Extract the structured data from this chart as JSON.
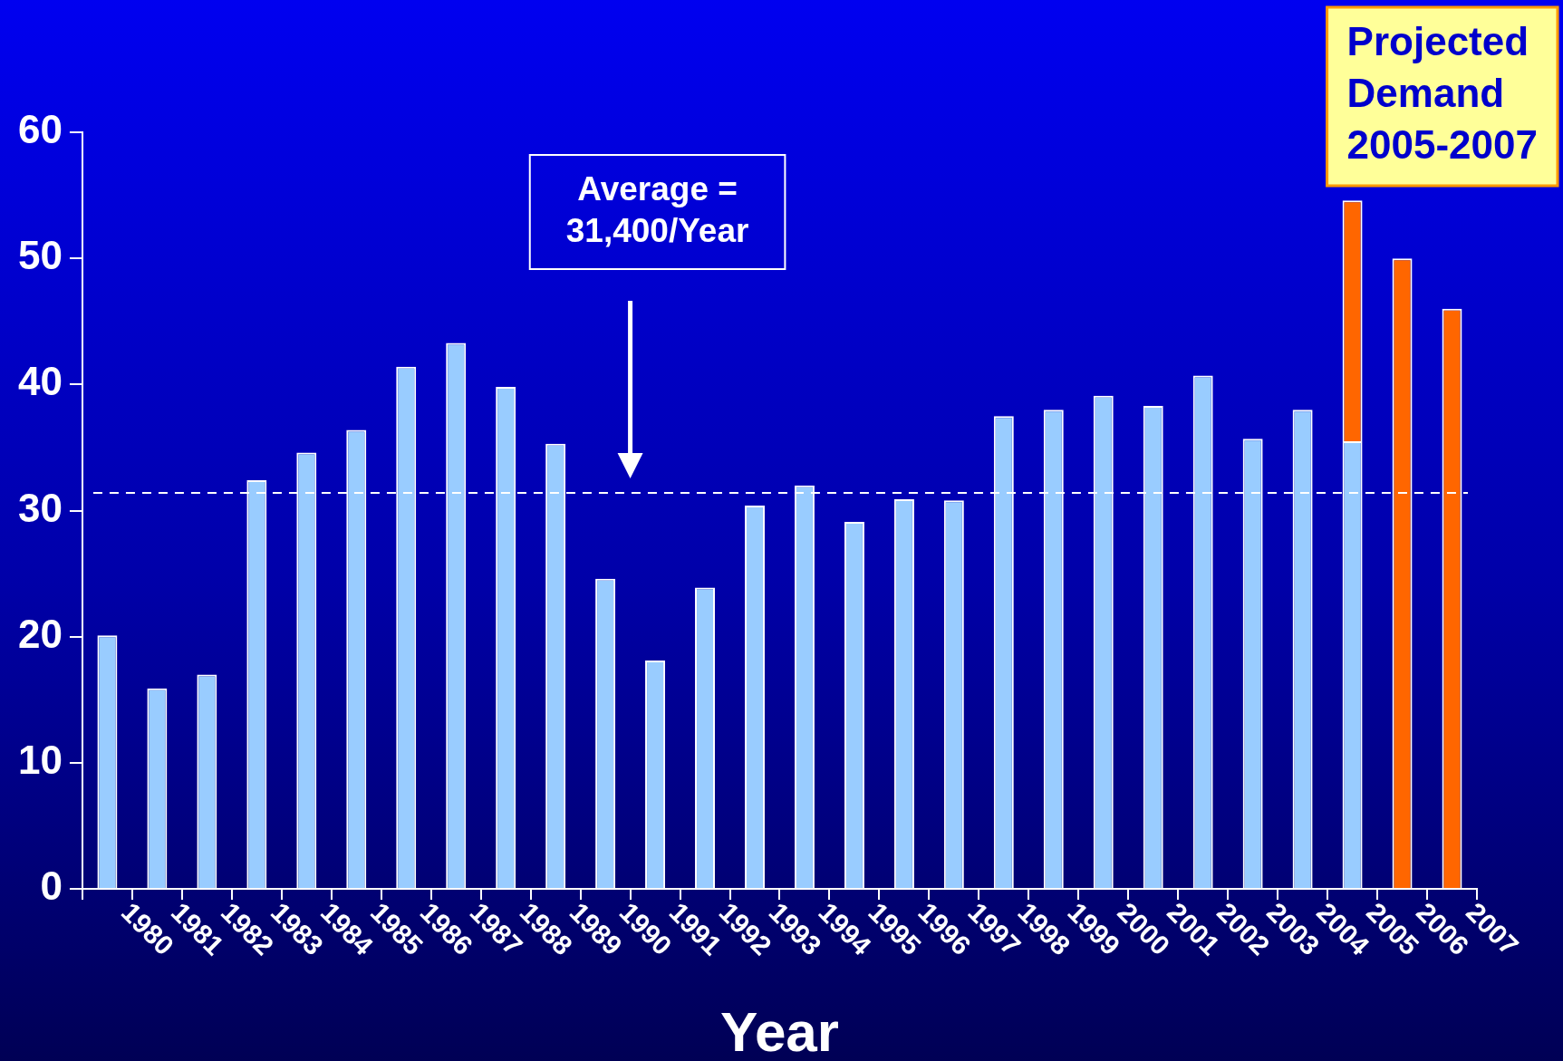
{
  "chart_data": {
    "type": "bar",
    "xlabel": "Year",
    "stacked": true,
    "categories": [
      "1980",
      "1981",
      "1982",
      "1983",
      "1984",
      "1985",
      "1986",
      "1987",
      "1988",
      "1989",
      "1990",
      "1991",
      "1992",
      "1993",
      "1994",
      "1995",
      "1996",
      "1997",
      "1998",
      "1999",
      "2000",
      "2001",
      "2002",
      "2003",
      "2004",
      "2005",
      "2006",
      "2007"
    ],
    "series": [
      {
        "color": "#99ccff",
        "values": [
          20.1,
          15.9,
          17.0,
          32.4,
          34.6,
          36.4,
          41.4,
          43.3,
          39.8,
          35.3,
          24.6,
          18.1,
          23.9,
          30.4,
          32.0,
          29.1,
          30.9,
          30.8,
          37.5,
          38.0,
          39.1,
          38.3,
          40.7,
          35.7,
          38.0,
          35.5,
          null,
          null
        ]
      },
      {
        "color": "#ff6600",
        "values": [
          null,
          null,
          null,
          null,
          null,
          null,
          null,
          null,
          null,
          null,
          null,
          null,
          null,
          null,
          null,
          null,
          null,
          null,
          null,
          null,
          null,
          null,
          null,
          null,
          null,
          19.1,
          50.0,
          46.0
        ]
      }
    ],
    "ylim": [
      0,
      60
    ],
    "yticks": [
      0,
      10,
      20,
      30,
      40,
      50,
      60
    ],
    "ref_lines": [
      {
        "axis": "y",
        "value": 31.4,
        "label": "Average = 31,400/Year",
        "color": "#ffffff",
        "line_style": "dashed"
      }
    ],
    "annotations": [
      "Projected Demand 2005-2007"
    ]
  }
}
